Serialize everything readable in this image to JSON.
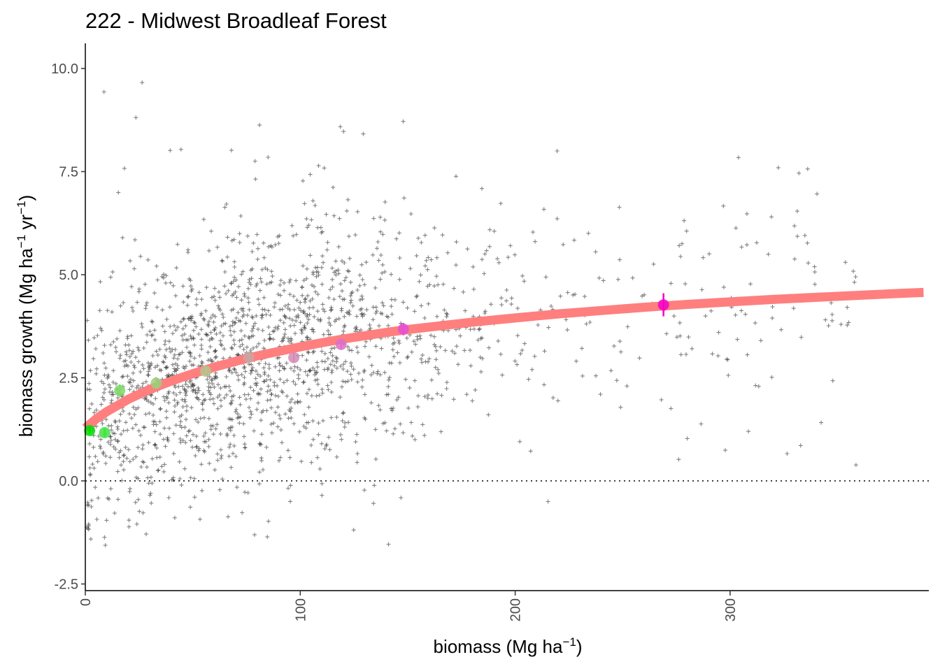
{
  "chart_data": {
    "type": "scatter",
    "title": "222 - Midwest Broadleaf Forest",
    "xlabel": "biomass (Mg ha⁻¹)",
    "xlabel_base": "biomass (Mg ha",
    "xlabel_sup": "−1",
    "xlabel_close": ")",
    "ylabel": "biomass growth (Mg ha⁻¹ yr⁻¹)",
    "ylabel_part1": "biomass growth (Mg ha",
    "ylabel_sup1": "−1",
    "ylabel_part2": " yr",
    "ylabel_sup2": "−1",
    "ylabel_close": ")",
    "xlim": [
      0,
      390
    ],
    "ylim": [
      -2.6,
      10.6
    ],
    "x_ticks": [
      {
        "value": 0,
        "label": "0"
      },
      {
        "value": 100,
        "label": "100"
      },
      {
        "value": 200,
        "label": "200"
      },
      {
        "value": 300,
        "label": "300"
      }
    ],
    "y_ticks": [
      {
        "value": -2.5,
        "label": "-2.5"
      },
      {
        "value": 0,
        "label": "0.0"
      },
      {
        "value": 2.5,
        "label": "2.5"
      },
      {
        "value": 5,
        "label": "5.0"
      },
      {
        "value": 7.5,
        "label": "7.5"
      },
      {
        "value": 10,
        "label": "10.0"
      }
    ],
    "reference_line": {
      "y": 0,
      "style": "dotted",
      "color": "#000000"
    },
    "fit_curve": {
      "name": "fitted growth curve",
      "color": "#ff7f7f",
      "x": [
        0,
        5,
        10,
        20,
        30,
        40,
        50,
        60,
        70,
        80,
        90,
        100,
        110,
        120,
        130,
        140,
        150,
        160,
        170,
        180,
        190,
        200,
        220,
        240,
        260,
        280,
        300,
        320,
        340,
        360,
        380,
        390
      ],
      "y": [
        1.28,
        1.5,
        1.68,
        1.98,
        2.22,
        2.42,
        2.6,
        2.76,
        2.9,
        3.03,
        3.14,
        3.25,
        3.35,
        3.44,
        3.52,
        3.6,
        3.67,
        3.73,
        3.79,
        3.85,
        3.9,
        3.95,
        4.05,
        4.13,
        4.21,
        4.28,
        4.34,
        4.4,
        4.45,
        4.5,
        4.55,
        4.57
      ]
    },
    "binned_means": [
      {
        "x": 2,
        "y": 1.22,
        "err": 0.08,
        "color": "#00dd00"
      },
      {
        "x": 9,
        "y": 1.17,
        "err": 0.1,
        "color": "#3fe33f"
      },
      {
        "x": 16,
        "y": 2.19,
        "err": 0.15,
        "color": "#7fd96a"
      },
      {
        "x": 33,
        "y": 2.37,
        "err": 0.12,
        "color": "#9ccf7a"
      },
      {
        "x": 56,
        "y": 2.66,
        "err": 0.1,
        "color": "#b7c48c"
      },
      {
        "x": 76,
        "y": 3.0,
        "err": 0.11,
        "color": "#c9a6a2"
      },
      {
        "x": 97,
        "y": 2.99,
        "err": 0.11,
        "color": "#d38ab6"
      },
      {
        "x": 119,
        "y": 3.31,
        "err": 0.12,
        "color": "#dc70c6"
      },
      {
        "x": 148,
        "y": 3.68,
        "err": 0.15,
        "color": "#e54fd2"
      },
      {
        "x": 269,
        "y": 4.27,
        "err": 0.28,
        "color": "#f500c8"
      }
    ],
    "scatter_series": {
      "name": "plot observations",
      "marker": "+",
      "color": "#1a1a1a",
      "n_points": 1900
    }
  }
}
